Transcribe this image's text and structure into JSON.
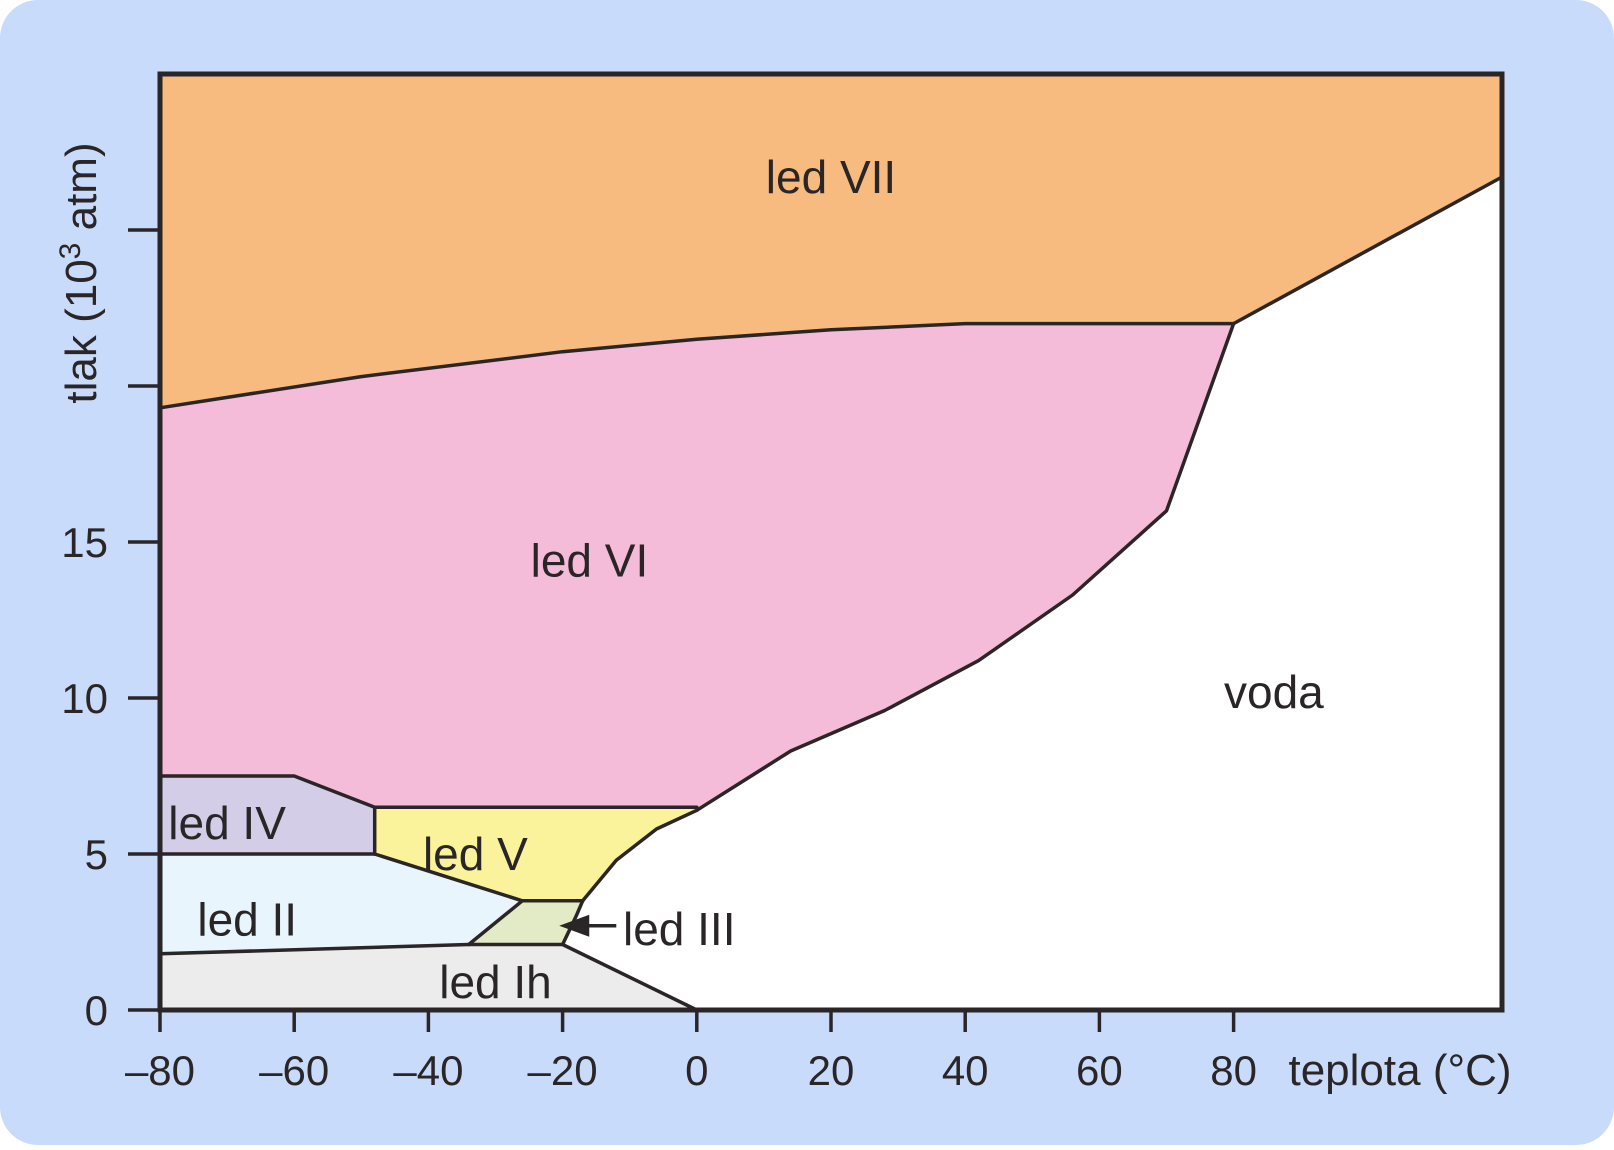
{
  "colors": {
    "background": "#c9dbfb",
    "plot_border": "#2a2526",
    "led_VII": "#f7bb80",
    "led_VI": "#f4bcd8",
    "led_IV": "#d3cde8",
    "led_V": "#faf39b",
    "led_II": "#e8f5fd",
    "led_III": "#e3eac6",
    "led_Ih": "#ececec",
    "voda": "#ffffff"
  },
  "axes": {
    "x": {
      "title": "teplota (°C)",
      "ticks": [
        -80,
        -60,
        -40,
        -20,
        0,
        20,
        40,
        60,
        80
      ],
      "tick_labels": [
        "–80",
        "–60",
        "–40",
        "–20",
        "0",
        "20",
        "40",
        "60",
        "80"
      ],
      "range": [
        -80,
        120
      ]
    },
    "y": {
      "title_prefix": "tlak (10",
      "title_superscript": "3",
      "title_suffix": " atm)",
      "ticks": [
        0,
        5,
        10,
        15,
        20,
        25
      ],
      "tick_labels": [
        "0",
        "5",
        "10",
        "15",
        "",
        ""
      ],
      "range": [
        0,
        30
      ]
    }
  },
  "regions": [
    {
      "id": "led_VII",
      "label": "led VII",
      "label_at": [
        20,
        26.7
      ]
    },
    {
      "id": "led_VI",
      "label": "led VI",
      "label_at": [
        -16,
        14.4
      ]
    },
    {
      "id": "led_IV",
      "label": "led IV",
      "label_at": [
        -70,
        6.0
      ]
    },
    {
      "id": "led_V",
      "label": "led V",
      "label_at": [
        -33,
        5.0
      ]
    },
    {
      "id": "led_II",
      "label": "led II",
      "label_at": [
        -67,
        2.9
      ]
    },
    {
      "id": "led_Ih",
      "label": "led Ih",
      "label_at": [
        -30,
        0.9
      ]
    },
    {
      "id": "voda",
      "label": "voda",
      "label_at": [
        86,
        10.2
      ]
    }
  ],
  "callouts": [
    {
      "id": "led_III",
      "label": "led III",
      "label_at": [
        -11,
        2.6
      ],
      "arrow_from": [
        -12,
        2.7
      ],
      "arrow_to": [
        -20.5,
        2.7
      ]
    }
  ],
  "boundaries": {
    "ice_VII": [
      [
        -80,
        19.3
      ],
      [
        -50,
        20.3
      ],
      [
        -20,
        21.1
      ],
      [
        0,
        21.5
      ],
      [
        20,
        21.8
      ],
      [
        40,
        22.0
      ],
      [
        60,
        22.0
      ],
      [
        80,
        22.0
      ],
      [
        120,
        26.7
      ]
    ],
    "ice_VI_melt": [
      [
        0,
        6.4
      ],
      [
        14,
        8.3
      ],
      [
        28,
        9.6
      ],
      [
        42,
        11.2
      ],
      [
        56,
        13.3
      ],
      [
        70,
        16.0
      ],
      [
        80,
        22.0
      ]
    ],
    "ice_VI_bottom": [
      [
        -80,
        7.5
      ],
      [
        -60,
        7.5
      ],
      [
        -48,
        6.5
      ],
      [
        0,
        6.5
      ]
    ],
    "ice_V_melt": [
      [
        -17,
        3.5
      ],
      [
        -12,
        4.8
      ],
      [
        -6,
        5.8
      ],
      [
        0,
        6.4
      ]
    ],
    "ice_IV_bottom": [
      [
        -80,
        5.0
      ],
      [
        -48,
        5.0
      ]
    ],
    "ice_IV_right": [
      [
        -48,
        6.5
      ],
      [
        -48,
        5.0
      ]
    ],
    "ice_II_V": [
      [
        -48,
        5.0
      ],
      [
        -26,
        3.5
      ],
      [
        -17,
        3.5
      ]
    ],
    "ice_II_III": [
      [
        -26,
        3.5
      ],
      [
        -34,
        2.1
      ]
    ],
    "ice_III_melt": [
      [
        -17,
        3.5
      ],
      [
        -18,
        3.0
      ],
      [
        -20,
        2.1
      ]
    ],
    "ice_Ih_top": [
      [
        -80,
        1.8
      ],
      [
        -34,
        2.1
      ],
      [
        -20,
        2.1
      ],
      [
        0,
        0.0
      ]
    ]
  },
  "fills": {
    "led_VII": [
      [
        -80,
        30
      ],
      [
        120,
        30
      ],
      [
        120,
        26.7
      ],
      [
        80,
        22.0
      ],
      [
        60,
        22.0
      ],
      [
        40,
        22.0
      ],
      [
        20,
        21.8
      ],
      [
        0,
        21.5
      ],
      [
        -20,
        21.1
      ],
      [
        -50,
        20.3
      ],
      [
        -80,
        19.3
      ]
    ],
    "led_VI": [
      [
        -80,
        19.3
      ],
      [
        -50,
        20.3
      ],
      [
        -20,
        21.1
      ],
      [
        0,
        21.5
      ],
      [
        20,
        21.8
      ],
      [
        40,
        22.0
      ],
      [
        60,
        22.0
      ],
      [
        80,
        22.0
      ],
      [
        70,
        16.0
      ],
      [
        56,
        13.3
      ],
      [
        42,
        11.2
      ],
      [
        28,
        9.6
      ],
      [
        14,
        8.3
      ],
      [
        0,
        6.4
      ],
      [
        0,
        6.5
      ],
      [
        -48,
        6.5
      ],
      [
        -60,
        7.5
      ],
      [
        -80,
        7.5
      ]
    ],
    "led_IV": [
      [
        -80,
        7.5
      ],
      [
        -60,
        7.5
      ],
      [
        -48,
        6.5
      ],
      [
        -48,
        5.0
      ],
      [
        -80,
        5.0
      ]
    ],
    "led_V": [
      [
        -48,
        6.5
      ],
      [
        0,
        6.5
      ],
      [
        0,
        6.4
      ],
      [
        -6,
        5.8
      ],
      [
        -12,
        4.8
      ],
      [
        -17,
        3.5
      ],
      [
        -26,
        3.5
      ],
      [
        -48,
        5.0
      ]
    ],
    "led_II": [
      [
        -80,
        5.0
      ],
      [
        -48,
        5.0
      ],
      [
        -26,
        3.5
      ],
      [
        -34,
        2.1
      ],
      [
        -80,
        1.8
      ]
    ],
    "led_III": [
      [
        -26,
        3.5
      ],
      [
        -17,
        3.5
      ],
      [
        -18,
        3.0
      ],
      [
        -20,
        2.1
      ],
      [
        -34,
        2.1
      ]
    ],
    "led_Ih": [
      [
        -80,
        1.8
      ],
      [
        -34,
        2.1
      ],
      [
        -20,
        2.1
      ],
      [
        0,
        0.0
      ],
      [
        -80,
        0.0
      ]
    ]
  }
}
